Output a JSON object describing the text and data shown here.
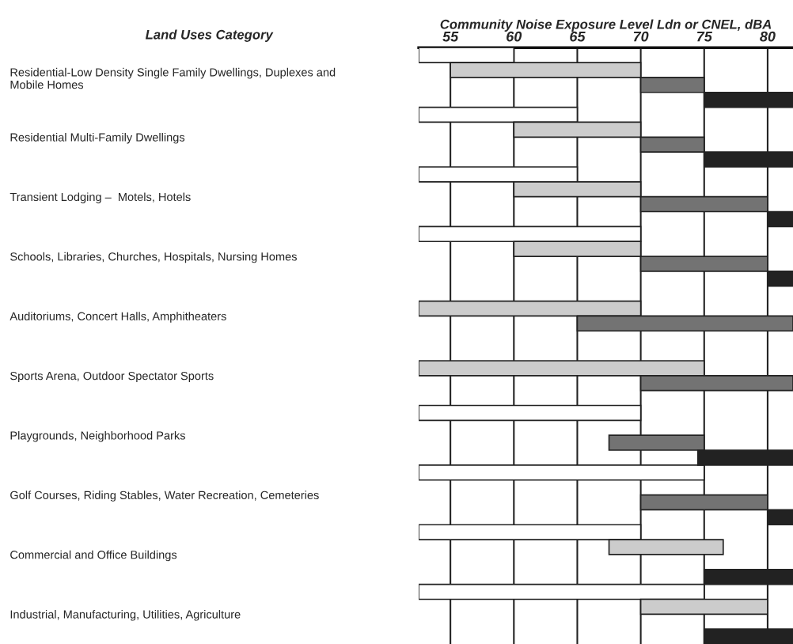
{
  "chart_data": {
    "type": "bar",
    "orientation": "horizontal",
    "xlabel": "Community Noise Exposure Level Ldn or CNEL, dBA",
    "ylabel": "Land Uses Category",
    "categories": [
      "Residential-Low Density Single Family Dwellings, Duplexes and\nMobile Homes",
      "Residential Multi-Family Dwellings",
      "Transient Lodging –  Motels, Hotels",
      "Schools, Libraries, Churches, Hospitals, Nursing Homes",
      "Auditoriums, Concert Halls, Amphitheaters",
      "Sports Arena, Outdoor Spectator Sports",
      "Playgrounds, Neighborhood Parks",
      "Golf Courses, Riding Stables, Water Recreation, Cemeteries",
      "Commercial and Office Buildings",
      "Industrial, Manufacturing, Utilities, Agriculture"
    ],
    "series": [
      {
        "color": "#ffffff",
        "base": [
          52.5,
          52.5,
          52.5,
          52.5,
          null,
          null,
          52.5,
          52.5,
          52.5,
          52.5
        ],
        "values": [
          7.5,
          12.5,
          12.5,
          17.5,
          null,
          null,
          17.5,
          22.5,
          17.5,
          22.5
        ]
      },
      {
        "color": "#cccccc",
        "base": [
          55,
          60,
          60,
          60,
          52.5,
          52.5,
          null,
          null,
          67.5,
          70
        ],
        "values": [
          15,
          10,
          10,
          10,
          17.5,
          22.5,
          null,
          null,
          9,
          10
        ]
      },
      {
        "color": "#737373",
        "base": [
          70,
          70,
          70,
          70,
          65,
          70,
          67.5,
          70,
          null,
          null
        ],
        "values": [
          5,
          5,
          10,
          10,
          17,
          12,
          7.5,
          10,
          null,
          null
        ]
      },
      {
        "color": "#222222",
        "base": [
          75,
          75,
          80,
          80,
          null,
          null,
          74.5,
          80,
          75,
          75
        ],
        "values": [
          7,
          7,
          2,
          2,
          null,
          null,
          7.5,
          2,
          7,
          7
        ]
      }
    ],
    "xlim": [
      52.5,
      82
    ],
    "xticks": [
      55,
      60,
      65,
      70,
      75,
      80
    ],
    "grid": "x"
  }
}
